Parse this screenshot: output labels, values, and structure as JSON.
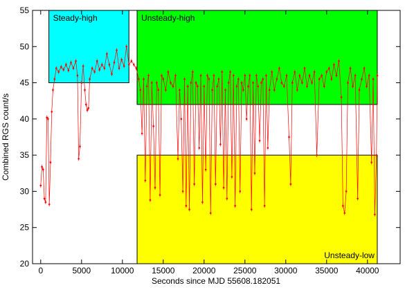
{
  "chart_data": {
    "type": "line",
    "xlabel": "Seconds since MJD 55608.182051",
    "ylabel": "Combined RGS count/s",
    "xlim": [
      -1000,
      44000
    ],
    "ylim": [
      20,
      55
    ],
    "xticks": [
      0,
      5000,
      10000,
      15000,
      20000,
      25000,
      30000,
      35000,
      40000
    ],
    "yticks": [
      20,
      25,
      30,
      35,
      40,
      45,
      50,
      55
    ],
    "regions": [
      {
        "label": "Steady-high",
        "x": [
          1000,
          10800
        ],
        "y": [
          45,
          55
        ],
        "color": "#00ffff"
      },
      {
        "label": "Unsteady-high",
        "x": [
          11800,
          41200
        ],
        "y": [
          42,
          55
        ],
        "color": "#00ff00"
      },
      {
        "label": "Unsteady-low",
        "x": [
          11800,
          41200
        ],
        "y": [
          20,
          35
        ],
        "color": "#ffff00"
      }
    ],
    "color": "#ff0000",
    "x": [
      0,
      150,
      300,
      450,
      600,
      750,
      900,
      1050,
      1200,
      1350,
      1500,
      1700,
      1900,
      2200,
      2500,
      2800,
      3100,
      3400,
      3700,
      4000,
      4300,
      4500,
      4650,
      4800,
      5000,
      5200,
      5400,
      5550,
      5700,
      5850,
      6000,
      6300,
      6600,
      6900,
      7200,
      7500,
      7800,
      8100,
      8400,
      8700,
      9000,
      9300,
      9600,
      9900,
      10200,
      10500,
      10800,
      11100,
      11400,
      11700,
      12000,
      12200,
      12400,
      12600,
      12800,
      13000,
      13200,
      13400,
      13600,
      13800,
      14000,
      14200,
      14400,
      14600,
      14800,
      15000,
      15300,
      15600,
      15900,
      16200,
      16500,
      16800,
      17000,
      17200,
      17400,
      17600,
      17800,
      18000,
      18200,
      18400,
      18600,
      18800,
      19000,
      19200,
      19400,
      19600,
      19800,
      20000,
      20200,
      20400,
      20600,
      20800,
      21000,
      21200,
      21400,
      21600,
      21800,
      22000,
      22200,
      22400,
      22600,
      22800,
      23000,
      23200,
      23400,
      23600,
      23800,
      24000,
      24200,
      24400,
      24600,
      24800,
      25000,
      25200,
      25400,
      25600,
      25800,
      26000,
      26200,
      26400,
      26600,
      26800,
      27000,
      27200,
      27400,
      27600,
      27800,
      28000,
      28300,
      28600,
      28900,
      29200,
      29500,
      29800,
      30100,
      30400,
      30600,
      30800,
      31100,
      31400,
      31700,
      32000,
      32300,
      32600,
      32900,
      33200,
      33500,
      33800,
      34100,
      34400,
      34700,
      35000,
      35300,
      35600,
      35900,
      36200,
      36500,
      36800,
      37000,
      37200,
      37400,
      37600,
      37900,
      38200,
      38500,
      38800,
      39000,
      39300,
      39600,
      39900,
      40200,
      40500,
      40700,
      40900,
      41100,
      41200
    ],
    "values": [
      30.8,
      33.4,
      33,
      29,
      28.5,
      40.2,
      40,
      28.2,
      34,
      41,
      44,
      45.5,
      47,
      46.5,
      47.2,
      46.8,
      47.5,
      46.7,
      47.8,
      47,
      48,
      46,
      34.5,
      36.2,
      45,
      47.3,
      44,
      42,
      41.2,
      41.5,
      45.5,
      47,
      46.5,
      48,
      46.8,
      47.5,
      47,
      49,
      47.5,
      46.2,
      47.8,
      49.5,
      47,
      48.2,
      47.3,
      50,
      47.5,
      48,
      47.5,
      47,
      45.5,
      44,
      38,
      45.5,
      31.5,
      44.5,
      46,
      28.8,
      45,
      39,
      30.5,
      45,
      44,
      29.5,
      46,
      45.5,
      44,
      46.5,
      45,
      44.5,
      46,
      34.5,
      44,
      40,
      30,
      45.5,
      28,
      44.5,
      27.5,
      45,
      46.5,
      31,
      45,
      44.5,
      36,
      46,
      28.5,
      44.5,
      33,
      46,
      45.5,
      27,
      44,
      46,
      31,
      44.5,
      45.5,
      36.5,
      46.5,
      30.5,
      44,
      29,
      45,
      46.5,
      32,
      46,
      28,
      44.5,
      45.5,
      30,
      45,
      44,
      46,
      40,
      44.5,
      46,
      27.5,
      45,
      32.5,
      46,
      44.5,
      37,
      45,
      45.5,
      28,
      46,
      36,
      44,
      46.5,
      44,
      45.5,
      47,
      45,
      44.5,
      46,
      37.5,
      31,
      45,
      46.5,
      44,
      46,
      45,
      47,
      44.5,
      46,
      45,
      46.5,
      35,
      45.5,
      46,
      44.5,
      46.5,
      47,
      45.5,
      47.5,
      46,
      48,
      43,
      28,
      27,
      30,
      45,
      47,
      44.5,
      46,
      29,
      44,
      45.5,
      47,
      44.5,
      46,
      34,
      45.5,
      26.8,
      35,
      46
    ]
  }
}
